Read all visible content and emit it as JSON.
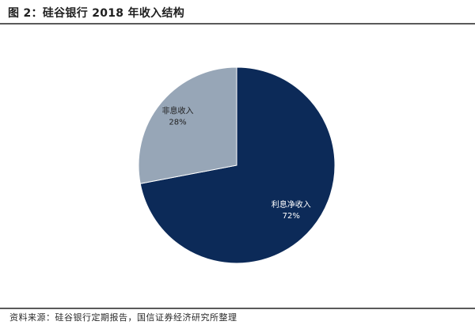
{
  "figure": {
    "title": "图 2：硅谷银行 2018 年收入结构",
    "source": "资料来源：硅谷银行定期报告，国信证券经济研究所整理"
  },
  "chart_data": {
    "type": "pie",
    "title": "",
    "slices": [
      {
        "label": "利息净收入",
        "value": 72,
        "value_label": "72%",
        "color": "#0c2a58",
        "text_color": "#ffffff"
      },
      {
        "label": "非息收入",
        "value": 28,
        "value_label": "28%",
        "color": "#97a6b7",
        "text_color": "#1f1f1f"
      }
    ],
    "start_angle": "12 o'clock",
    "direction": "clockwise",
    "legend": "none"
  }
}
